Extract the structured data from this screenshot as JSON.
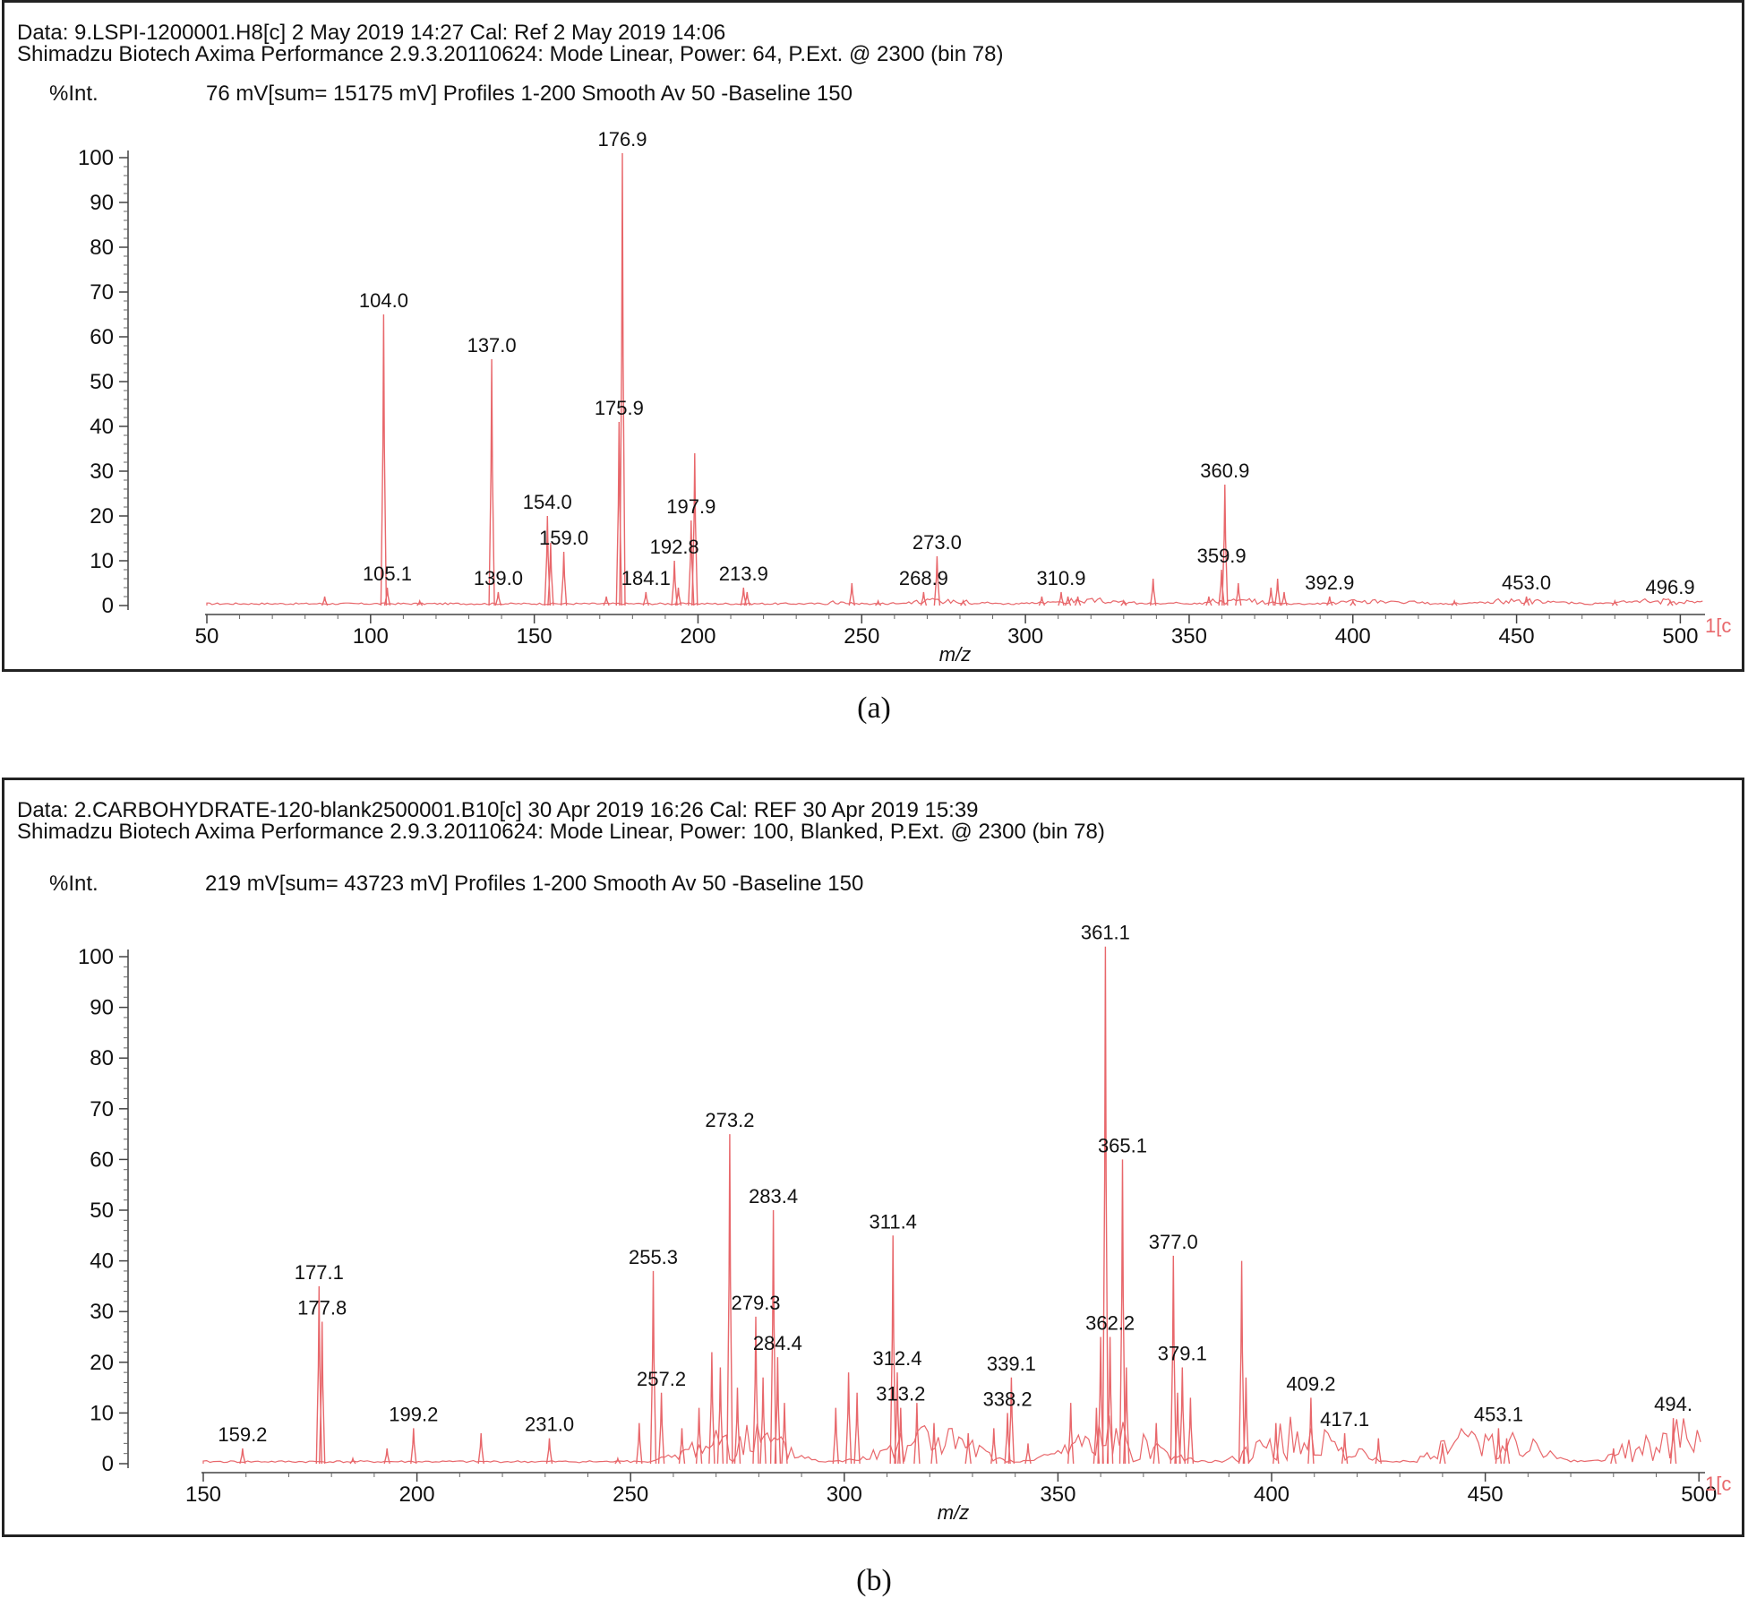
{
  "figures": [
    {
      "id": "a",
      "caption": "(a)",
      "header_line1": "Data: 9.LSPI-1200001.H8[c] 2 May 2019 14:27 Cal: Ref 2 May 2019 14:06",
      "header_line2": "Shimadzu Biotech Axima Performance 2.9.3.20110624: Mode Linear, Power: 64, P.Ext. @ 2300 (bin 78)",
      "int_label": "%Int.",
      "summary": "76 mV[sum= 15175 mV]  Profiles 1-200 Smooth Av 50 -Baseline 150",
      "corner_text": "1[c"
    },
    {
      "id": "b",
      "caption": "(b)",
      "header_line1": "Data: 2.CARBOHYDRATE-120-blank2500001.B10[c] 30 Apr 2019 16:26 Cal: REF 30 Apr 2019 15:39",
      "header_line2": "Shimadzu Biotech Axima Performance 2.9.3.20110624: Mode Linear, Power: 100, Blanked, P.Ext. @ 2300 (bin 78)",
      "int_label": "%Int.",
      "summary": "219 mV[sum= 43723 mV]  Profiles 1-200 Smooth Av 50 -Baseline 150",
      "corner_text": "1[c"
    }
  ],
  "chart_data": [
    {
      "type": "line",
      "title": "",
      "xlabel": "m/z",
      "ylabel": "%Int.",
      "xlim": [
        50,
        507
      ],
      "ylim": [
        0,
        100
      ],
      "color": "#e8676b",
      "xticks": [
        50,
        100,
        150,
        200,
        250,
        300,
        350,
        400,
        450,
        500
      ],
      "yticks": [
        0,
        10,
        20,
        30,
        40,
        50,
        60,
        70,
        80,
        90,
        100
      ],
      "series": [
        {
          "name": "spectrum",
          "peaks": [
            {
              "x": 86,
              "y": 2
            },
            {
              "x": 104.0,
              "y": 65
            },
            {
              "x": 105.1,
              "y": 4
            },
            {
              "x": 115,
              "y": 1
            },
            {
              "x": 137.0,
              "y": 55
            },
            {
              "x": 139.0,
              "y": 3
            },
            {
              "x": 154.0,
              "y": 20
            },
            {
              "x": 155,
              "y": 14
            },
            {
              "x": 159.0,
              "y": 12
            },
            {
              "x": 172,
              "y": 2
            },
            {
              "x": 175.9,
              "y": 41
            },
            {
              "x": 176.9,
              "y": 101
            },
            {
              "x": 184.1,
              "y": 3
            },
            {
              "x": 192.8,
              "y": 10
            },
            {
              "x": 194,
              "y": 4
            },
            {
              "x": 197.9,
              "y": 19
            },
            {
              "x": 199,
              "y": 34
            },
            {
              "x": 213.9,
              "y": 4
            },
            {
              "x": 215,
              "y": 3
            },
            {
              "x": 247,
              "y": 5
            },
            {
              "x": 255,
              "y": 1
            },
            {
              "x": 268.9,
              "y": 3
            },
            {
              "x": 273.0,
              "y": 11
            },
            {
              "x": 281,
              "y": 1
            },
            {
              "x": 305,
              "y": 2
            },
            {
              "x": 310.9,
              "y": 3
            },
            {
              "x": 313,
              "y": 2
            },
            {
              "x": 316,
              "y": 2
            },
            {
              "x": 330,
              "y": 1
            },
            {
              "x": 339,
              "y": 6
            },
            {
              "x": 356,
              "y": 2
            },
            {
              "x": 359.9,
              "y": 8
            },
            {
              "x": 360.9,
              "y": 27
            },
            {
              "x": 365,
              "y": 5
            },
            {
              "x": 375,
              "y": 4
            },
            {
              "x": 377,
              "y": 6
            },
            {
              "x": 379,
              "y": 3
            },
            {
              "x": 392.9,
              "y": 2
            },
            {
              "x": 400,
              "y": 1
            },
            {
              "x": 431,
              "y": 1
            },
            {
              "x": 453.0,
              "y": 2
            },
            {
              "x": 480,
              "y": 1
            },
            {
              "x": 496.9,
              "y": 1
            }
          ]
        }
      ],
      "annotations": [
        {
          "label": "176.9",
          "x": 176.9,
          "y": 101
        },
        {
          "label": "104.0",
          "x": 104.0,
          "y": 65
        },
        {
          "label": "137.0",
          "x": 137.0,
          "y": 55
        },
        {
          "label": "175.9",
          "x": 175.9,
          "y": 41
        },
        {
          "label": "360.9",
          "x": 360.9,
          "y": 27
        },
        {
          "label": "154.0",
          "x": 154.0,
          "y": 20
        },
        {
          "label": "197.9",
          "x": 197.9,
          "y": 19
        },
        {
          "label": "159.0",
          "x": 159.0,
          "y": 12
        },
        {
          "label": "273.0",
          "x": 273.0,
          "y": 11
        },
        {
          "label": "192.8",
          "x": 192.8,
          "y": 10
        },
        {
          "label": "359.9",
          "x": 359.9,
          "y": 8
        },
        {
          "label": "105.1",
          "x": 105.1,
          "y": 4
        },
        {
          "label": "213.9",
          "x": 213.9,
          "y": 4
        },
        {
          "label": "184.1",
          "x": 184.1,
          "y": 3
        },
        {
          "label": "268.9",
          "x": 268.9,
          "y": 3
        },
        {
          "label": "310.9",
          "x": 310.9,
          "y": 3
        },
        {
          "label": "139.0",
          "x": 139.0,
          "y": 3
        },
        {
          "label": "392.9",
          "x": 392.9,
          "y": 2
        },
        {
          "label": "453.0",
          "x": 453.0,
          "y": 2
        },
        {
          "label": "496.9",
          "x": 496.9,
          "y": 1
        }
      ]
    },
    {
      "type": "line",
      "title": "",
      "xlabel": "m/z",
      "ylabel": "%Int.",
      "xlim": [
        150,
        501
      ],
      "ylim": [
        0,
        100
      ],
      "color": "#e8676b",
      "xticks": [
        150,
        200,
        250,
        300,
        350,
        400,
        450,
        500
      ],
      "yticks": [
        0,
        10,
        20,
        30,
        40,
        50,
        60,
        70,
        80,
        90,
        100
      ],
      "series": [
        {
          "name": "spectrum",
          "peaks": [
            {
              "x": 159.2,
              "y": 3
            },
            {
              "x": 177.1,
              "y": 35
            },
            {
              "x": 177.8,
              "y": 28
            },
            {
              "x": 185,
              "y": 1
            },
            {
              "x": 193,
              "y": 3
            },
            {
              "x": 199.2,
              "y": 7
            },
            {
              "x": 215,
              "y": 6
            },
            {
              "x": 231.0,
              "y": 5
            },
            {
              "x": 247,
              "y": 1
            },
            {
              "x": 252,
              "y": 8
            },
            {
              "x": 255.3,
              "y": 38
            },
            {
              "x": 257.2,
              "y": 14
            },
            {
              "x": 262,
              "y": 7
            },
            {
              "x": 266,
              "y": 11
            },
            {
              "x": 269,
              "y": 22
            },
            {
              "x": 271,
              "y": 19
            },
            {
              "x": 273.2,
              "y": 65
            },
            {
              "x": 275,
              "y": 15
            },
            {
              "x": 279.3,
              "y": 29
            },
            {
              "x": 281,
              "y": 17
            },
            {
              "x": 283.4,
              "y": 50
            },
            {
              "x": 284.4,
              "y": 21
            },
            {
              "x": 286,
              "y": 12
            },
            {
              "x": 298,
              "y": 11
            },
            {
              "x": 301,
              "y": 18
            },
            {
              "x": 303,
              "y": 14
            },
            {
              "x": 311.4,
              "y": 45
            },
            {
              "x": 312.4,
              "y": 18
            },
            {
              "x": 313.2,
              "y": 11
            },
            {
              "x": 317,
              "y": 12
            },
            {
              "x": 321,
              "y": 8
            },
            {
              "x": 329,
              "y": 6
            },
            {
              "x": 335,
              "y": 7
            },
            {
              "x": 338.2,
              "y": 10
            },
            {
              "x": 339.1,
              "y": 17
            },
            {
              "x": 343,
              "y": 4
            },
            {
              "x": 353,
              "y": 12
            },
            {
              "x": 359,
              "y": 11
            },
            {
              "x": 360,
              "y": 25
            },
            {
              "x": 361.1,
              "y": 102
            },
            {
              "x": 362.2,
              "y": 25
            },
            {
              "x": 365.1,
              "y": 60
            },
            {
              "x": 366,
              "y": 19
            },
            {
              "x": 373,
              "y": 8
            },
            {
              "x": 377.0,
              "y": 41
            },
            {
              "x": 378,
              "y": 14
            },
            {
              "x": 379.1,
              "y": 19
            },
            {
              "x": 381,
              "y": 13
            },
            {
              "x": 393,
              "y": 40
            },
            {
              "x": 394,
              "y": 17
            },
            {
              "x": 401,
              "y": 8
            },
            {
              "x": 409.2,
              "y": 13
            },
            {
              "x": 417.1,
              "y": 6
            },
            {
              "x": 425,
              "y": 5
            },
            {
              "x": 440,
              "y": 4
            },
            {
              "x": 453.1,
              "y": 7
            },
            {
              "x": 455,
              "y": 5
            },
            {
              "x": 480,
              "y": 3
            },
            {
              "x": 494,
              "y": 9
            }
          ]
        }
      ],
      "annotations": [
        {
          "label": "361.1",
          "x": 361.1,
          "y": 102
        },
        {
          "label": "273.2",
          "x": 273.2,
          "y": 65
        },
        {
          "label": "365.1",
          "x": 365.1,
          "y": 60
        },
        {
          "label": "283.4",
          "x": 283.4,
          "y": 50
        },
        {
          "label": "311.4",
          "x": 311.4,
          "y": 45
        },
        {
          "label": "377.0",
          "x": 377.0,
          "y": 41
        },
        {
          "label": "255.3",
          "x": 255.3,
          "y": 38
        },
        {
          "label": "177.1",
          "x": 177.1,
          "y": 35
        },
        {
          "label": "177.8",
          "x": 177.8,
          "y": 28
        },
        {
          "label": "279.3",
          "x": 279.3,
          "y": 29
        },
        {
          "label": "362.2",
          "x": 362.2,
          "y": 25
        },
        {
          "label": "284.4",
          "x": 284.4,
          "y": 21
        },
        {
          "label": "312.4",
          "x": 312.4,
          "y": 18
        },
        {
          "label": "339.1",
          "x": 339.1,
          "y": 17
        },
        {
          "label": "379.1",
          "x": 379.1,
          "y": 19
        },
        {
          "label": "257.2",
          "x": 257.2,
          "y": 14
        },
        {
          "label": "409.2",
          "x": 409.2,
          "y": 13
        },
        {
          "label": "313.2",
          "x": 313.2,
          "y": 11
        },
        {
          "label": "338.2",
          "x": 338.2,
          "y": 10
        },
        {
          "label": "199.2",
          "x": 199.2,
          "y": 7
        },
        {
          "label": "417.1",
          "x": 417.1,
          "y": 6
        },
        {
          "label": "453.1",
          "x": 453.1,
          "y": 7
        },
        {
          "label": "231.0",
          "x": 231.0,
          "y": 5
        },
        {
          "label": "159.2",
          "x": 159.2,
          "y": 3
        },
        {
          "label": "494.",
          "x": 494,
          "y": 9
        }
      ]
    }
  ]
}
